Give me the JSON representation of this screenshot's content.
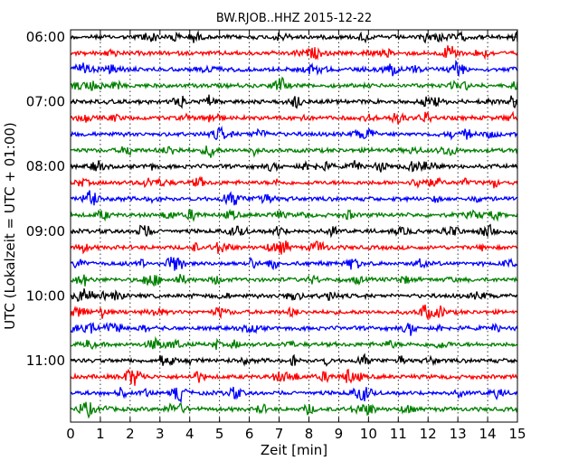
{
  "chart_data": {
    "type": "line",
    "title": "BW.RJOB..HHZ 2015-12-22",
    "xlabel": "Zeit  [min]",
    "ylabel": "UTC (Lokalzeit = UTC + 01:00)",
    "xlim": [
      0,
      15
    ],
    "x_ticks": [
      "0",
      "1",
      "2",
      "3",
      "4",
      "5",
      "6",
      "7",
      "8",
      "9",
      "10",
      "11",
      "12",
      "13",
      "14",
      "15"
    ],
    "y_tick_labels": [
      "06:00",
      "07:00",
      "08:00",
      "09:00",
      "10:00",
      "11:00"
    ],
    "trace_colors": [
      "#000000",
      "#ff0000",
      "#0000ff",
      "#008000"
    ],
    "grid": "vertical dotted lines at each minute",
    "traces": [
      {
        "start": "06:00"
      },
      {
        "start": "06:15"
      },
      {
        "start": "06:30"
      },
      {
        "start": "06:45"
      },
      {
        "start": "07:00"
      },
      {
        "start": "07:15"
      },
      {
        "start": "07:30"
      },
      {
        "start": "07:45"
      },
      {
        "start": "08:00"
      },
      {
        "start": "08:15"
      },
      {
        "start": "08:30"
      },
      {
        "start": "08:45"
      },
      {
        "start": "09:00"
      },
      {
        "start": "09:15"
      },
      {
        "start": "09:30"
      },
      {
        "start": "09:45"
      },
      {
        "start": "10:00"
      },
      {
        "start": "10:15"
      },
      {
        "start": "10:30"
      },
      {
        "start": "10:45"
      },
      {
        "start": "11:00"
      },
      {
        "start": "11:15"
      },
      {
        "start": "11:30"
      },
      {
        "start": "11:45"
      }
    ]
  }
}
